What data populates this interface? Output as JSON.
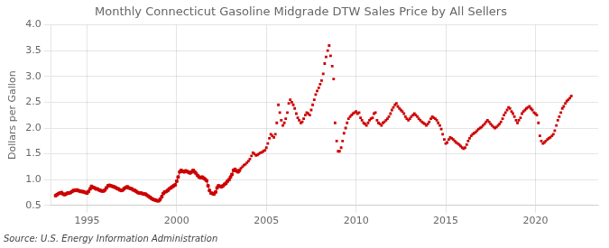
{
  "chart_data": {
    "type": "line",
    "title": "Monthly Connecticut Gasoline Midgrade DTW Sales Price by All Sellers",
    "ylabel": "Dollars per Gallon",
    "annotations": [
      "Source: U.S. Energy Information Administration"
    ],
    "xlim": [
      1993.0,
      2023.5
    ],
    "ylim": [
      0.5,
      4.0
    ],
    "xticks": [
      1995,
      2000,
      2005,
      2010,
      2015,
      2020
    ],
    "yticks": [
      0.5,
      {
        "value": 1.0,
        "label": "1.0"
      },
      1.5,
      {
        "value": 2.0,
        "label": "2.0"
      },
      2.5,
      {
        "value": 3.0,
        "label": "3.0"
      },
      3.5,
      {
        "value": 4.0,
        "label": "4.0"
      }
    ],
    "grid": true,
    "color": "#cc0000",
    "marker": "square",
    "series": [
      {
        "type": "line",
        "x": [
          1993.25,
          1993.33,
          1993.42,
          1993.5,
          1993.58,
          1993.67,
          1993.75,
          1993.83,
          1993.92,
          1994.0,
          1994.08,
          1994.17,
          1994.25,
          1994.33,
          1994.42,
          1994.5,
          1994.58,
          1994.67,
          1994.75,
          1994.83,
          1994.92,
          1995.0,
          1995.08,
          1995.17,
          1995.25,
          1995.33,
          1995.42,
          1995.5,
          1995.58,
          1995.67,
          1995.75,
          1995.83,
          1995.92,
          1996.0,
          1996.08,
          1996.17,
          1996.25,
          1996.33,
          1996.42,
          1996.5,
          1996.58,
          1996.67,
          1996.75,
          1996.83,
          1996.92,
          1997.0,
          1997.08,
          1997.17,
          1997.25,
          1997.33,
          1997.42,
          1997.5,
          1997.58,
          1997.67,
          1997.75,
          1997.83,
          1997.92,
          1998.0,
          1998.08,
          1998.17,
          1998.25,
          1998.33,
          1998.42,
          1998.5,
          1998.58,
          1998.67,
          1998.75,
          1998.83,
          1998.92,
          1999.0,
          1999.08,
          1999.17,
          1999.25,
          1999.33,
          1999.42,
          1999.5,
          1999.58,
          1999.67,
          1999.75,
          1999.83,
          1999.92,
          2000.0,
          2000.08,
          2000.17,
          2000.25,
          2000.33,
          2000.42,
          2000.5,
          2000.58,
          2000.67,
          2000.75,
          2000.83,
          2000.92,
          2001.0,
          2001.08,
          2001.17,
          2001.25,
          2001.33,
          2001.42,
          2001.5,
          2001.58,
          2001.67,
          2001.75,
          2001.83,
          2001.92,
          2002.0,
          2002.08,
          2002.17,
          2002.25,
          2002.33,
          2002.42,
          2002.5,
          2002.58,
          2002.67,
          2002.75,
          2002.83,
          2002.92,
          2003.0,
          2003.08,
          2003.17,
          2003.25,
          2003.33,
          2003.42,
          2003.5
        ],
        "values": [
          0.69,
          0.71,
          0.73,
          0.74,
          0.75,
          0.72,
          0.71,
          0.72,
          0.74,
          0.74,
          0.75,
          0.77,
          0.79,
          0.79,
          0.8,
          0.79,
          0.78,
          0.77,
          0.77,
          0.76,
          0.75,
          0.74,
          0.77,
          0.82,
          0.87,
          0.85,
          0.84,
          0.82,
          0.82,
          0.8,
          0.79,
          0.78,
          0.78,
          0.8,
          0.84,
          0.88,
          0.89,
          0.88,
          0.87,
          0.86,
          0.85,
          0.83,
          0.82,
          0.8,
          0.79,
          0.8,
          0.83,
          0.85,
          0.86,
          0.84,
          0.83,
          0.82,
          0.8,
          0.79,
          0.77,
          0.75,
          0.74,
          0.74,
          0.73,
          0.72,
          0.72,
          0.7,
          0.68,
          0.66,
          0.64,
          0.62,
          0.61,
          0.6,
          0.59,
          0.59,
          0.62,
          0.67,
          0.73,
          0.76,
          0.77,
          0.79,
          0.82,
          0.84,
          0.86,
          0.88,
          0.9,
          0.97,
          1.05,
          1.15,
          1.18,
          1.16,
          1.15,
          1.17,
          1.16,
          1.14,
          1.13,
          1.15,
          1.18,
          1.15,
          1.12,
          1.08,
          1.05,
          1.04,
          1.05,
          1.03,
          1.01,
          0.98,
          0.88,
          0.79,
          0.74,
          0.73,
          0.72,
          0.76,
          0.84,
          0.88,
          0.87,
          0.86,
          0.88,
          0.91,
          0.93,
          0.97,
          1.0,
          1.05,
          1.1,
          1.18,
          1.2,
          1.17,
          1.15,
          1.18
        ]
      },
      {
        "type": "scatter",
        "x": [
          2003.58,
          2003.67,
          2003.75,
          2003.83,
          2003.92,
          2004.0,
          2004.08,
          2004.17,
          2004.25,
          2004.33,
          2004.42,
          2004.5,
          2004.58,
          2004.67,
          2004.75,
          2004.83,
          2004.92,
          2005.0,
          2005.08,
          2005.17,
          2005.25,
          2005.33,
          2005.42,
          2005.5,
          2005.58,
          2005.67,
          2005.75,
          2005.83,
          2005.92,
          2006.0,
          2006.08,
          2006.17,
          2006.25,
          2006.33,
          2006.42,
          2006.5,
          2006.58,
          2006.67,
          2006.75,
          2006.83,
          2006.92,
          2007.0,
          2007.08,
          2007.17,
          2007.25,
          2007.33,
          2007.42,
          2007.5,
          2007.58,
          2007.67,
          2007.75,
          2007.83,
          2007.92,
          2008.0,
          2008.08,
          2008.17,
          2008.25,
          2008.33,
          2008.42,
          2008.5,
          2008.58,
          2008.67,
          2008.75,
          2008.83,
          2008.92,
          2009.0,
          2009.08,
          2009.17,
          2009.25,
          2009.33,
          2009.42,
          2009.5,
          2009.58,
          2009.67,
          2009.75,
          2009.83,
          2009.92,
          2010.0,
          2010.08,
          2010.17,
          2010.25,
          2010.33,
          2010.42,
          2010.5,
          2010.58,
          2010.67,
          2010.75,
          2010.83,
          2010.92,
          2011.0,
          2011.08,
          2011.17,
          2011.25,
          2011.33,
          2011.42,
          2011.5,
          2011.58,
          2011.67,
          2011.75,
          2011.83,
          2011.92,
          2012.0,
          2012.08,
          2012.17,
          2012.25,
          2012.33,
          2012.42,
          2012.5,
          2012.58,
          2012.67,
          2012.75,
          2012.83,
          2012.92,
          2013.0,
          2013.08,
          2013.17,
          2013.25,
          2013.33,
          2013.42,
          2013.5,
          2013.58,
          2013.67,
          2013.75,
          2013.83,
          2013.92,
          2014.0,
          2014.08,
          2014.17,
          2014.25,
          2014.33,
          2014.42,
          2014.5,
          2014.58,
          2014.67,
          2014.75,
          2014.83,
          2014.92,
          2015.0,
          2015.08,
          2015.17,
          2015.25,
          2015.33,
          2015.42,
          2015.5,
          2015.58,
          2015.67,
          2015.75,
          2015.83,
          2015.92,
          2016.0,
          2016.08,
          2016.17,
          2016.25,
          2016.33,
          2016.42,
          2016.5,
          2016.58,
          2016.67,
          2016.75,
          2016.83,
          2016.92,
          2017.0,
          2017.08,
          2017.17,
          2017.25,
          2017.33,
          2017.42,
          2017.5,
          2017.58,
          2017.67,
          2017.75,
          2017.83,
          2017.92,
          2018.0,
          2018.08,
          2018.17,
          2018.25,
          2018.33,
          2018.42,
          2018.5,
          2018.58,
          2018.67,
          2018.75,
          2018.83,
          2018.92,
          2019.0,
          2019.08,
          2019.17,
          2019.25,
          2019.33,
          2019.42,
          2019.5,
          2019.58,
          2019.67,
          2019.75,
          2019.83,
          2019.92,
          2020.0,
          2020.08,
          2020.17,
          2020.25,
          2020.33,
          2020.42,
          2020.5,
          2020.58,
          2020.67,
          2020.75,
          2020.83,
          2020.92,
          2021.0,
          2021.08,
          2021.17,
          2021.25,
          2021.33,
          2021.42,
          2021.5,
          2021.58,
          2021.67,
          2021.75,
          2021.83,
          2021.92,
          2022.0
        ],
        "values": [
          1.22,
          1.25,
          1.28,
          1.3,
          1.33,
          1.36,
          1.4,
          1.46,
          1.52,
          1.5,
          1.47,
          1.48,
          1.5,
          1.52,
          1.53,
          1.55,
          1.57,
          1.62,
          1.7,
          1.8,
          1.88,
          1.85,
          1.82,
          1.88,
          2.1,
          2.45,
          2.3,
          2.15,
          2.05,
          2.1,
          2.18,
          2.3,
          2.48,
          2.55,
          2.5,
          2.45,
          2.38,
          2.28,
          2.2,
          2.15,
          2.1,
          2.12,
          2.18,
          2.25,
          2.3,
          2.28,
          2.25,
          2.35,
          2.45,
          2.55,
          2.65,
          2.72,
          2.78,
          2.85,
          2.92,
          3.05,
          3.25,
          3.38,
          3.5,
          3.6,
          3.4,
          3.2,
          2.95,
          2.1,
          1.75,
          1.55,
          1.55,
          1.62,
          1.75,
          1.9,
          2.0,
          2.1,
          2.18,
          2.22,
          2.25,
          2.28,
          2.3,
          2.32,
          2.28,
          2.3,
          2.2,
          2.15,
          2.1,
          2.08,
          2.05,
          2.1,
          2.15,
          2.18,
          2.2,
          2.28,
          2.3,
          2.15,
          2.1,
          2.08,
          2.05,
          2.1,
          2.12,
          2.15,
          2.18,
          2.22,
          2.28,
          2.35,
          2.4,
          2.45,
          2.48,
          2.42,
          2.38,
          2.35,
          2.32,
          2.28,
          2.22,
          2.18,
          2.15,
          2.18,
          2.22,
          2.25,
          2.28,
          2.25,
          2.22,
          2.18,
          2.15,
          2.12,
          2.1,
          2.08,
          2.05,
          2.08,
          2.12,
          2.18,
          2.22,
          2.2,
          2.18,
          2.15,
          2.1,
          2.05,
          1.98,
          1.88,
          1.78,
          1.7,
          1.72,
          1.78,
          1.82,
          1.8,
          1.78,
          1.75,
          1.72,
          1.7,
          1.68,
          1.65,
          1.62,
          1.6,
          1.62,
          1.68,
          1.75,
          1.8,
          1.85,
          1.88,
          1.9,
          1.92,
          1.95,
          1.98,
          2.0,
          2.02,
          2.05,
          2.08,
          2.12,
          2.15,
          2.12,
          2.08,
          2.05,
          2.02,
          2.0,
          2.02,
          2.05,
          2.08,
          2.12,
          2.18,
          2.25,
          2.3,
          2.35,
          2.4,
          2.38,
          2.32,
          2.28,
          2.22,
          2.15,
          2.1,
          2.15,
          2.2,
          2.28,
          2.32,
          2.35,
          2.38,
          2.4,
          2.42,
          2.38,
          2.35,
          2.3,
          2.28,
          2.25,
          2.1,
          1.85,
          1.75,
          1.7,
          1.72,
          1.75,
          1.78,
          1.8,
          1.82,
          1.85,
          1.88,
          1.95,
          2.05,
          2.15,
          2.22,
          2.3,
          2.38,
          2.42,
          2.48,
          2.52,
          2.55,
          2.58,
          2.62
        ]
      }
    ]
  }
}
